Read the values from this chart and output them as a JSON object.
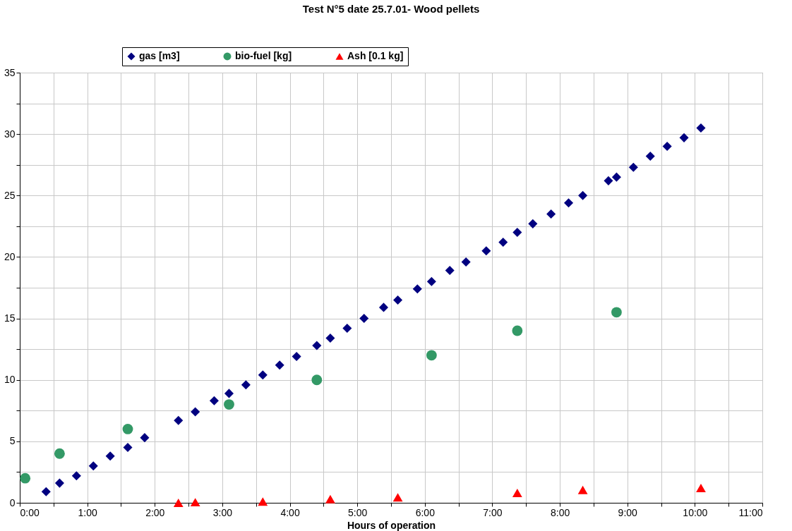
{
  "chart_data": {
    "type": "scatter",
    "title": "Test N°5 date 25.7.01- Wood pellets",
    "xlabel": "Hours of operation",
    "xlim": [
      0,
      11
    ],
    "ylim": [
      0,
      35
    ],
    "xticks": [
      {
        "value": 0,
        "label": "0:00"
      },
      {
        "value": 0.5,
        "label": null
      },
      {
        "value": 1,
        "label": "1:00"
      },
      {
        "value": 1.5,
        "label": null
      },
      {
        "value": 2,
        "label": "2:00"
      },
      {
        "value": 2.5,
        "label": null
      },
      {
        "value": 3,
        "label": "3:00"
      },
      {
        "value": 3.5,
        "label": null
      },
      {
        "value": 4,
        "label": "4:00"
      },
      {
        "value": 4.5,
        "label": null
      },
      {
        "value": 5,
        "label": "5:00"
      },
      {
        "value": 5.5,
        "label": null
      },
      {
        "value": 6,
        "label": "6:00"
      },
      {
        "value": 6.5,
        "label": null
      },
      {
        "value": 7,
        "label": "7:00"
      },
      {
        "value": 7.5,
        "label": null
      },
      {
        "value": 8,
        "label": "8:00"
      },
      {
        "value": 8.5,
        "label": null
      },
      {
        "value": 9,
        "label": "9:00"
      },
      {
        "value": 9.5,
        "label": null
      },
      {
        "value": 10,
        "label": "10:00"
      },
      {
        "value": 10.5,
        "label": null
      },
      {
        "value": 11,
        "label": "11:00"
      }
    ],
    "yticks": [
      0,
      {
        "value": 2.5,
        "label": null
      },
      5,
      {
        "value": 7.5,
        "label": null
      },
      10,
      {
        "value": 12.5,
        "label": null
      },
      15,
      {
        "value": 17.5,
        "label": null
      },
      20,
      {
        "value": 22.5,
        "label": null
      },
      25,
      {
        "value": 27.5,
        "label": null
      },
      30,
      {
        "value": 32.5,
        "label": null
      },
      35
    ],
    "grid": true,
    "legend": "top",
    "series": [
      {
        "name": "gas [m3]",
        "color": "#000080",
        "marker": "diamond",
        "x": [
          0.39,
          0.59,
          0.84,
          1.09,
          1.34,
          1.6,
          1.85,
          2.35,
          2.6,
          2.88,
          3.1,
          3.35,
          3.6,
          3.85,
          4.1,
          4.4,
          4.6,
          4.85,
          5.1,
          5.39,
          5.6,
          5.89,
          6.1,
          6.37,
          6.61,
          6.91,
          7.16,
          7.37,
          7.6,
          7.87,
          8.13,
          8.34,
          8.72,
          8.84,
          9.09,
          9.34,
          9.59,
          9.84,
          10.09
        ],
        "values": [
          0.9,
          1.6,
          2.2,
          3.0,
          3.8,
          4.5,
          5.3,
          6.7,
          7.4,
          8.3,
          8.9,
          9.6,
          10.4,
          11.2,
          11.9,
          12.8,
          13.4,
          14.2,
          15.0,
          15.9,
          16.5,
          17.4,
          18.0,
          18.9,
          19.6,
          20.5,
          21.2,
          22.0,
          22.7,
          23.5,
          24.4,
          25.0,
          26.2,
          26.5,
          27.3,
          28.2,
          29.0,
          29.7,
          30.5
        ]
      },
      {
        "name": "bio-fuel [kg]",
        "color": "#339966",
        "marker": "circle",
        "x": [
          0.08,
          0.59,
          1.6,
          3.1,
          4.4,
          6.1,
          7.37,
          8.84
        ],
        "values": [
          2,
          4,
          6,
          8,
          10,
          12,
          14,
          15.5
        ]
      },
      {
        "name": "Ash [0.1 kg]",
        "color": "#ff0000",
        "marker": "triangle",
        "x": [
          2.35,
          2.6,
          3.6,
          4.6,
          5.6,
          7.37,
          8.34,
          10.09
        ],
        "values": [
          0.0,
          0.05,
          0.1,
          0.3,
          0.45,
          0.8,
          1.05,
          1.2
        ]
      }
    ]
  }
}
